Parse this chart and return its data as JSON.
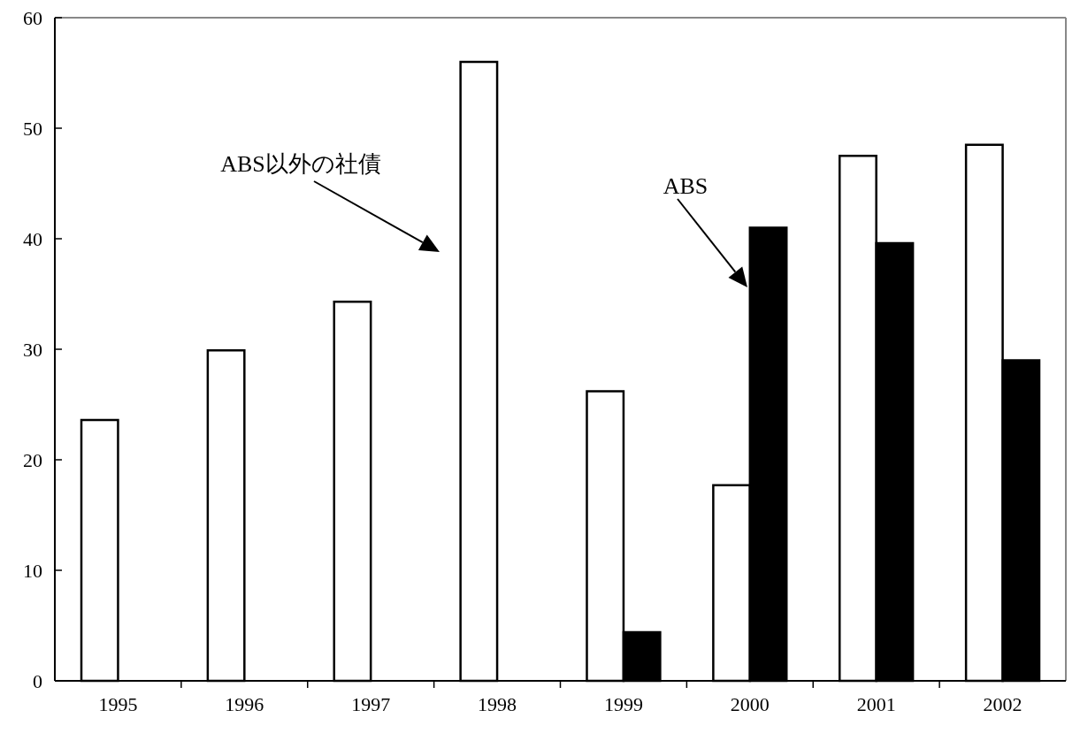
{
  "chart_data": {
    "type": "bar",
    "categories": [
      "1995",
      "1996",
      "1997",
      "1998",
      "1999",
      "2000",
      "2001",
      "2002"
    ],
    "series": [
      {
        "color": "#ffffff",
        "values": [
          23.6,
          29.9,
          34.3,
          56.0,
          26.2,
          17.7,
          47.5,
          48.5
        ]
      },
      {
        "color": "#000000",
        "values": [
          null,
          null,
          null,
          null,
          4.4,
          41.0,
          39.6,
          29.0
        ]
      }
    ],
    "ylim": [
      0,
      60
    ],
    "yticks": [
      0,
      10,
      20,
      30,
      40,
      50,
      60
    ],
    "grid": false,
    "annotations": [
      "ABS以外の社債",
      "ABS"
    ]
  }
}
